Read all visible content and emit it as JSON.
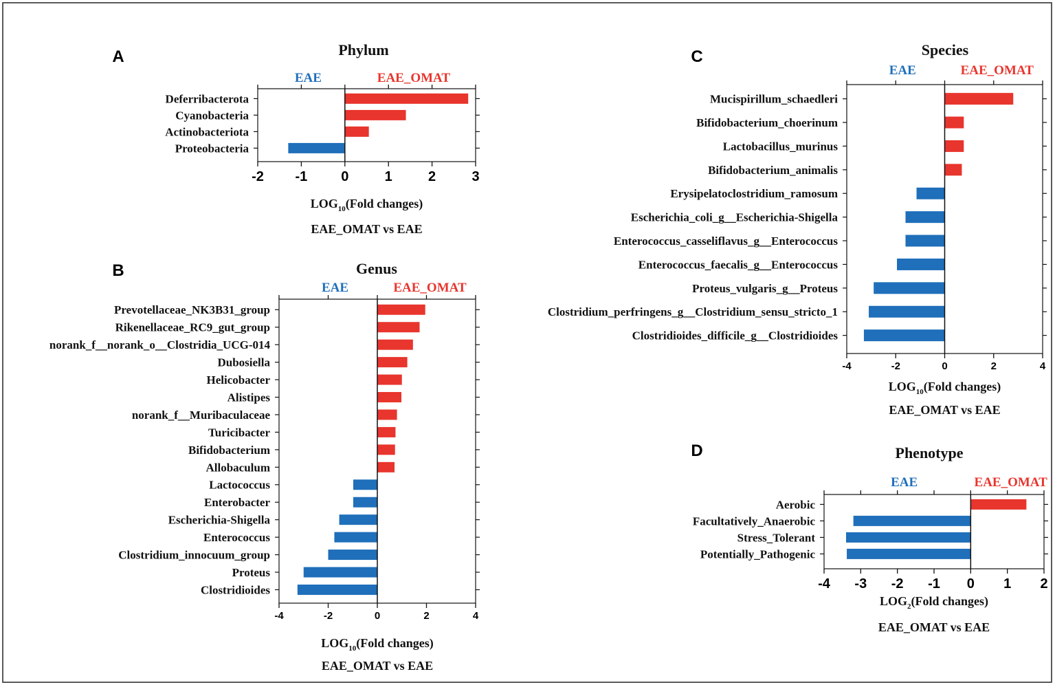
{
  "colors": {
    "neg": "#1f6fba",
    "pos": "#e8352d",
    "axis": "#111111",
    "frame": "#222222"
  },
  "chart_data": [
    {
      "type": "bar",
      "orientation": "horizontal",
      "panel_label": "A",
      "title": "Phylum",
      "neg_group": "EAE",
      "pos_group": "EAE_OMAT",
      "xlabel_main": "LOG",
      "xlabel_sub": "10",
      "xlabel_tail": "(Fold changes)",
      "comparison": "EAE_OMAT vs EAE",
      "xlim": [
        -2,
        3
      ],
      "ticks": [
        -2,
        -1,
        0,
        1,
        2,
        3
      ],
      "tick_labels": [
        "-2",
        "-1",
        "0",
        "1",
        "2",
        "3"
      ],
      "categories": [
        "Deferribacterota",
        "Cyanobacteria",
        "Actinobacteriota",
        "Proteobacteria"
      ],
      "values": [
        2.83,
        1.4,
        0.55,
        -1.3
      ]
    },
    {
      "type": "bar",
      "orientation": "horizontal",
      "panel_label": "B",
      "title": "Genus",
      "neg_group": "EAE",
      "pos_group": "EAE_OMAT",
      "xlabel_main": "LOG",
      "xlabel_sub": "10",
      "xlabel_tail": "(Fold changes)",
      "comparison": "EAE_OMAT vs EAE",
      "xlim": [
        -4,
        4
      ],
      "ticks": [
        -4,
        -2,
        0,
        2,
        4
      ],
      "tick_labels": [
        "-4",
        "-2",
        "0",
        "2",
        "4"
      ],
      "categories": [
        "Prevotellaceae_NK3B31_group",
        "Rikenellaceae_RC9_gut_group",
        "norank_f__norank_o__Clostridia_UCG-014",
        "Dubosiella",
        "Helicobacter",
        "Alistipes",
        "norank_f__Muribaculaceae",
        "Turicibacter",
        "Bifidobacterium",
        "Allobaculum",
        "Lactococcus",
        "Enterobacter",
        "Escherichia-Shigella",
        "Enterococcus",
        "Clostridium_innocuum_group",
        "Proteus",
        "Clostridioides"
      ],
      "values": [
        1.95,
        1.72,
        1.45,
        1.22,
        1.0,
        0.98,
        0.8,
        0.74,
        0.72,
        0.7,
        -0.98,
        -0.98,
        -1.55,
        -1.75,
        -2.0,
        -3.0,
        -3.25
      ]
    },
    {
      "type": "bar",
      "orientation": "horizontal",
      "panel_label": "C",
      "title": "Species",
      "neg_group": "EAE",
      "pos_group": "EAE_OMAT",
      "xlabel_main": "LOG",
      "xlabel_sub": "10",
      "xlabel_tail": "(Fold changes)",
      "comparison": "EAE_OMAT vs EAE",
      "xlim": [
        -4,
        4
      ],
      "ticks": [
        -4,
        -2,
        0,
        2,
        4
      ],
      "tick_labels": [
        "-4",
        "-2",
        "0",
        "2",
        "4"
      ],
      "categories": [
        "Mucispirillum_schaedleri",
        "Bifidobacterium_choerinum",
        "Lactobacillus_murinus",
        "Bifidobacterium_animalis",
        "Erysipelatoclostridium_ramosum",
        "Escherichia_coli_g__Escherichia-Shigella",
        "Enterococcus_casseliflavus_g__Enterococcus",
        "Enterococcus_faecalis_g__Enterococcus",
        "Proteus_vulgaris_g__Proteus",
        "Clostridium_perfringens_g__Clostridium_sensu_stricto_1",
        "Clostridioides_difficile_g__Clostridioides"
      ],
      "values": [
        2.8,
        0.78,
        0.78,
        0.7,
        -1.15,
        -1.6,
        -1.6,
        -1.95,
        -2.9,
        -3.1,
        -3.3
      ]
    },
    {
      "type": "bar",
      "orientation": "horizontal",
      "panel_label": "D",
      "title": "Phenotype",
      "neg_group": "EAE",
      "pos_group": "EAE_OMAT",
      "xlabel_main": "LOG",
      "xlabel_sub": "2",
      "xlabel_tail": "(Fold changes)",
      "comparison": "EAE_OMAT vs EAE",
      "xlim": [
        -4,
        2
      ],
      "ticks": [
        -4,
        -3,
        -2,
        -1,
        0,
        1,
        2
      ],
      "tick_labels": [
        "-4",
        "-3",
        "-2",
        "-1",
        "0",
        "1",
        "2"
      ],
      "categories": [
        "Aerobic",
        "Facultatively_Anaerobic",
        "Stress_Tolerant",
        "Potentially_Pathogenic"
      ],
      "values": [
        1.52,
        -3.2,
        -3.4,
        -3.38
      ]
    }
  ]
}
